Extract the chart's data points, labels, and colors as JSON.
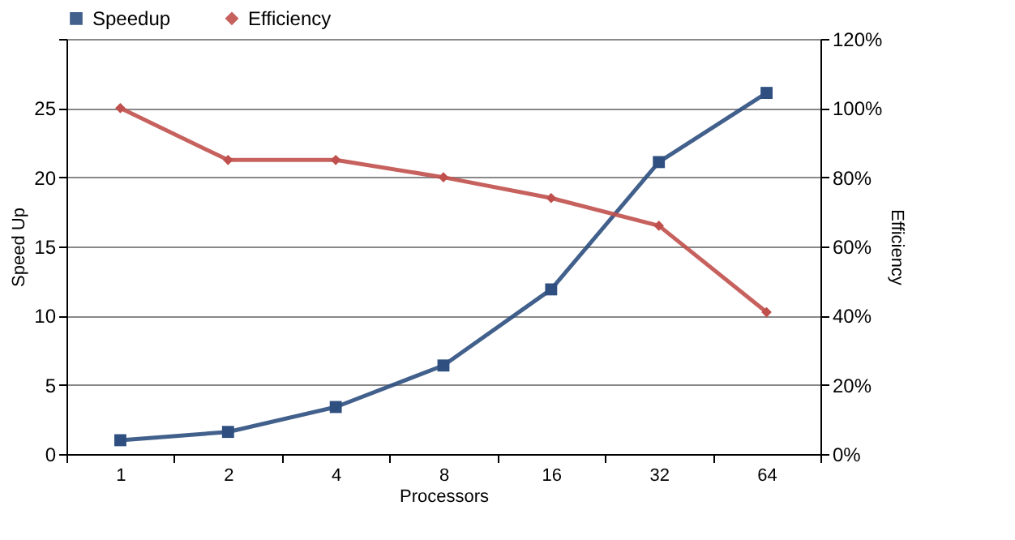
{
  "chart_data": {
    "type": "line",
    "xlabel": "Processors",
    "ylabel": "Speed Up",
    "y2label": "Efficiency",
    "categories": [
      "1",
      "2",
      "4",
      "8",
      "16",
      "32",
      "64"
    ],
    "series": [
      {
        "name": "Speedup",
        "color": "#2e4f7f",
        "marker": "square",
        "values": [
          1.0,
          1.6,
          3.4,
          6.4,
          11.9,
          21.1,
          26.1
        ]
      },
      {
        "name": "Efficiency",
        "color": "#c0504d",
        "marker": "diamond",
        "axis": "y2",
        "values": [
          100,
          85,
          85,
          80,
          74,
          66,
          41
        ]
      }
    ],
    "ylim": [
      0,
      30
    ],
    "yticks": [
      0,
      5,
      10,
      15,
      20,
      25,
      {
        "value": 30,
        "label": null
      }
    ],
    "y2lim": [
      0,
      120
    ],
    "y2ticks": [
      {
        "value": 0,
        "label": "0%"
      },
      {
        "value": 20,
        "label": "20%"
      },
      {
        "value": 40,
        "label": "40%"
      },
      {
        "value": 60,
        "label": "60%"
      },
      {
        "value": 80,
        "label": "80%"
      },
      {
        "value": 100,
        "label": "100%"
      },
      {
        "value": 120,
        "label": "120%"
      }
    ],
    "grid": "y",
    "legend": "top",
    "line_style": "solid"
  }
}
